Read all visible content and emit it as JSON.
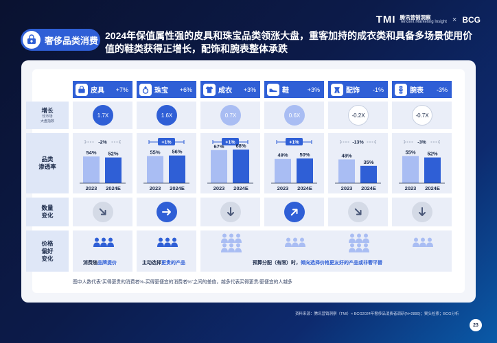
{
  "brand": {
    "tmi": "TMI",
    "tmi_cn": "腾讯营销洞察",
    "tmi_en": "Tencent Marketing Insight",
    "sep": "×",
    "bcg": "BCG"
  },
  "tag": {
    "label": "奢侈品类消费",
    "icon": "diamond-bag-icon"
  },
  "headline": "2024年保值属性强的皮具和珠宝品类领涨大盘，重客加持的成衣类和具备多场景使用价值的鞋类获得正增长，配饰和腕表整体承跌",
  "row_labels": {
    "growth": "增长",
    "growth_sub1": "较市场",
    "growth_sub2": "大盘指数",
    "penetration1": "品类",
    "penetration2": "渗透率",
    "trend1": "数量",
    "trend2": "变化",
    "pref1": "价格",
    "pref2": "偏好",
    "pref3": "变化"
  },
  "categories": [
    {
      "name": "皮具",
      "change": "+7%",
      "icon": "handbag-icon",
      "growth": "1.7X",
      "growth_style": "strong",
      "diff": "-2%",
      "v2023": "54%",
      "v2024": "52%",
      "n2023": 54,
      "n2024": 52,
      "trend": "down-right"
    },
    {
      "name": "珠宝",
      "change": "+6%",
      "icon": "ring-icon",
      "growth": "1.6X",
      "growth_style": "strong",
      "diff": "+1%",
      "v2023": "55%",
      "v2024": "56%",
      "n2023": 55,
      "n2024": 56,
      "trend": "right"
    },
    {
      "name": "成衣",
      "change": "+3%",
      "icon": "shirt-icon",
      "growth": "0.7X",
      "growth_style": "light",
      "diff": "+1%",
      "v2023": "67%",
      "v2024": "68%",
      "n2023": 67,
      "n2024": 68,
      "trend": "down"
    },
    {
      "name": "鞋",
      "change": "+3%",
      "icon": "shoe-icon",
      "growth": "0.6X",
      "growth_style": "light",
      "diff": "+1%",
      "v2023": "49%",
      "v2024": "50%",
      "n2023": 49,
      "n2024": 50,
      "trend": "up-right"
    },
    {
      "name": "配饰",
      "change": "-1%",
      "icon": "scarf-icon",
      "growth": "-0.2X",
      "growth_style": "neg",
      "diff": "-13%",
      "v2023": "48%",
      "v2024": "35%",
      "n2023": 48,
      "n2024": 35,
      "trend": "down-right"
    },
    {
      "name": "腕表",
      "change": "-3%",
      "icon": "watch-icon",
      "growth": "-0.7X",
      "growth_style": "neg",
      "diff": "-3%",
      "v2023": "55%",
      "v2024": "52%",
      "n2023": 55,
      "n2024": 52,
      "trend": "down"
    }
  ],
  "years": {
    "y1": "2023",
    "y2": "2024E"
  },
  "prefs": {
    "p1_a": "消费随",
    "p1_b": "品牌提价",
    "p2_a": "主动选择",
    "p2_b": "更贵的产品",
    "p3_a": "预算分配（有限）时，",
    "p3_b": "倾向选择价格更友好的产品或非奢平替"
  },
  "footnote": "图中人数代表“买得更贵的消费者%-买得更便宜的消费者%”之间的差值，越多代表买得更贵/更便宜的人越多",
  "source": "资料来源：腾讯营销洞察（TMI）× BCG2024年奢侈品消费者调研(N=2890)；案头检索；BCG分析",
  "page": "23",
  "colors": {
    "primary": "#2f5fd6",
    "light_bar": "#a9bdf3",
    "dark_bar": "#2f5fd6"
  }
}
